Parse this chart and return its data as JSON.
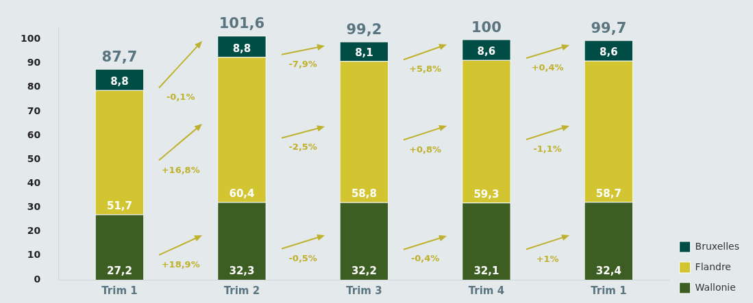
{
  "chart_data": {
    "type": "bar",
    "stacked": true,
    "categories": [
      "Trim 1",
      "Trim 2",
      "Trim 3",
      "Trim 4",
      "Trim 1"
    ],
    "series": [
      {
        "name": "Wallonie",
        "color": "#3d5e23",
        "values": [
          27.2,
          32.3,
          32.2,
          32.1,
          32.4
        ],
        "value_labels": [
          "27,2",
          "32,3",
          "32,2",
          "32,1",
          "32,4"
        ]
      },
      {
        "name": "Flandre",
        "color": "#d3c532",
        "values": [
          51.7,
          60.4,
          58.8,
          59.3,
          58.7
        ],
        "value_labels": [
          "51,7",
          "60,4",
          "58,8",
          "59,3",
          "58,7"
        ]
      },
      {
        "name": "Bruxelles",
        "color": "#004d45",
        "values": [
          8.8,
          8.8,
          8.1,
          8.6,
          8.6
        ],
        "value_labels": [
          "8,8",
          "8,8",
          "8,1",
          "8,6",
          "8,6"
        ]
      }
    ],
    "totals": [
      "87,7",
      "101,6",
      "99,2",
      "100",
      "99,7"
    ],
    "annotations": [
      "+18,9%",
      "+16,8%",
      "-0,1%",
      "-0,5%",
      "-2,5%",
      "-7,9%",
      "-0,4%",
      "+0,8%",
      "+5,8%",
      "+1%",
      "-1,1%",
      "+0,4%"
    ],
    "ylim": [
      0,
      105
    ],
    "yticks": [
      0,
      10,
      20,
      30,
      40,
      50,
      60,
      70,
      80,
      90,
      100
    ],
    "grid": false,
    "legend": "bottom right"
  }
}
